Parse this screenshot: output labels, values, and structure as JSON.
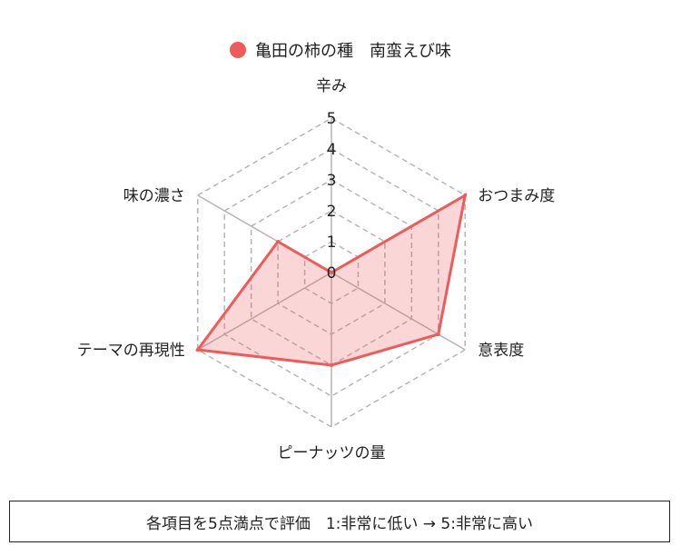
{
  "colors": {
    "series_line": "#ee5b5b",
    "series_fill": "rgba(238,91,91,0.25)",
    "grid": "#b5b5b5",
    "axis": "#b5b5b5"
  },
  "chart_data": {
    "type": "radar",
    "axes": [
      "辛み",
      "おつまみ度",
      "意表度",
      "ピーナッツの量",
      "テーマの再現性",
      "味の濃さ"
    ],
    "ticks": [
      "0",
      "1",
      "2",
      "3",
      "4",
      "5"
    ],
    "rlim": [
      0,
      5
    ],
    "grid": true,
    "legend_position": "top-center",
    "series": [
      {
        "name": "亀田の柿の種　南蛮えび味",
        "values": [
          0,
          5,
          4,
          3,
          5,
          2
        ]
      }
    ]
  },
  "footer": {
    "note": "各項目を5点満点で評価　1:非常に低い → 5:非常に高い"
  }
}
